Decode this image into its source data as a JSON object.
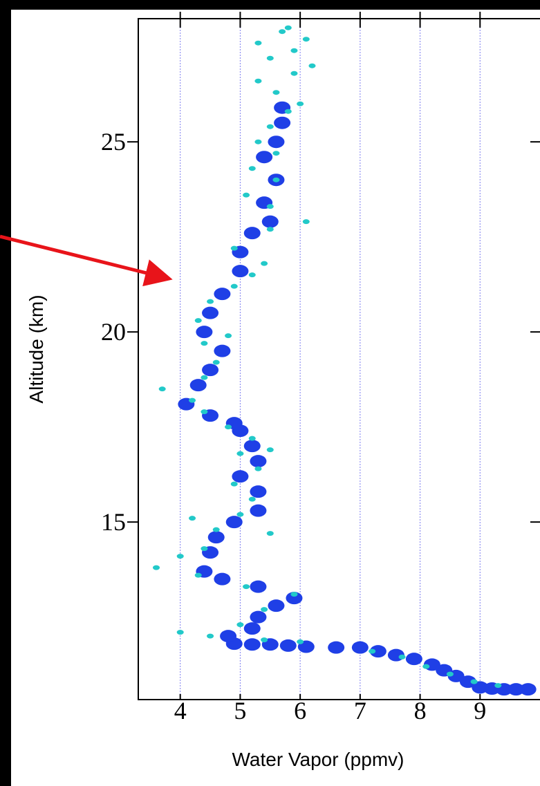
{
  "chart_data": {
    "type": "scatter",
    "xlabel": "Water Vapor (ppmv)",
    "ylabel": "Altitude (km)",
    "xlim": [
      3.3,
      10.0
    ],
    "ylim": [
      10.33,
      28.24
    ],
    "xticks": [
      4,
      5,
      6,
      7,
      8,
      9
    ],
    "yticks": [
      15,
      20,
      25
    ],
    "grid": true,
    "series": [
      {
        "color": "#1f3fe6",
        "x": [
          9.8,
          9.6,
          9.4,
          9.2,
          9.0,
          8.8,
          8.6,
          8.4,
          8.2,
          7.9,
          7.6,
          7.3,
          7.0,
          6.6,
          6.1,
          5.8,
          5.5,
          5.2,
          4.9,
          4.8,
          5.2,
          5.3,
          5.6,
          5.9,
          5.3,
          4.7,
          4.4,
          4.5,
          4.6,
          4.9,
          5.3,
          5.3,
          5.0,
          5.3,
          5.2,
          5.0,
          4.9,
          4.5,
          4.1,
          4.3,
          4.5,
          4.7,
          4.4,
          4.5,
          4.7,
          5.0,
          5.0,
          5.2,
          5.5,
          5.4,
          5.6,
          5.4,
          5.6,
          5.7,
          5.7
        ],
        "values": [
          10.6,
          10.6,
          10.6,
          10.62,
          10.65,
          10.8,
          10.95,
          11.1,
          11.25,
          11.4,
          11.5,
          11.6,
          11.7,
          11.7,
          11.72,
          11.75,
          11.78,
          11.78,
          11.8,
          12.0,
          12.2,
          12.5,
          12.8,
          13.0,
          13.3,
          13.5,
          13.7,
          14.2,
          14.6,
          15.0,
          15.3,
          15.8,
          16.2,
          16.6,
          17.0,
          17.4,
          17.6,
          17.8,
          18.1,
          18.6,
          19.0,
          19.5,
          20.0,
          20.5,
          21.0,
          21.6,
          22.1,
          22.6,
          22.9,
          23.4,
          24.0,
          24.6,
          25.0,
          25.5,
          25.9
        ]
      },
      {
        "color": "#22c9c9",
        "x": [
          9.3,
          8.9,
          8.5,
          8.1,
          7.7,
          7.2,
          6.0,
          5.4,
          4.5,
          4.0,
          5.0,
          5.4,
          5.9,
          5.1,
          4.3,
          3.6,
          4.0,
          4.4,
          4.6,
          4.2,
          5.0,
          5.5,
          5.2,
          4.9,
          5.3,
          5.0,
          5.5,
          5.2,
          4.8,
          4.4,
          4.2,
          3.7,
          4.4,
          4.6,
          4.4,
          4.8,
          4.3,
          4.5,
          4.9,
          5.2,
          5.4,
          4.9,
          5.5,
          6.1,
          5.5,
          5.1,
          5.6,
          5.2,
          5.6,
          5.3,
          5.5,
          5.8,
          6.0,
          5.6,
          5.3,
          5.9,
          6.2,
          5.5,
          5.9,
          6.1,
          5.7,
          5.3,
          5.8
        ],
        "values": [
          10.7,
          10.8,
          11.0,
          11.2,
          11.45,
          11.6,
          11.85,
          11.9,
          12.0,
          12.1,
          12.3,
          12.7,
          13.1,
          13.3,
          13.6,
          13.8,
          14.1,
          14.3,
          14.8,
          15.1,
          15.2,
          14.7,
          15.6,
          16.0,
          16.4,
          16.8,
          16.9,
          17.2,
          17.5,
          17.9,
          18.2,
          18.5,
          18.8,
          19.2,
          19.7,
          19.9,
          20.3,
          20.8,
          21.2,
          21.5,
          21.8,
          22.2,
          22.7,
          22.9,
          23.3,
          23.6,
          24.0,
          24.3,
          24.7,
          25.0,
          25.4,
          25.8,
          26.0,
          26.3,
          26.6,
          26.8,
          27.0,
          27.2,
          27.4,
          27.7,
          27.9,
          27.6,
          28.0
        ]
      }
    ]
  }
}
